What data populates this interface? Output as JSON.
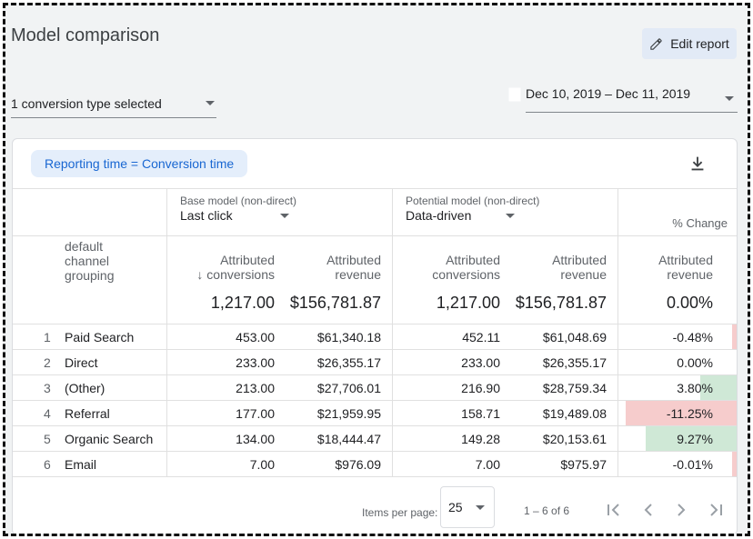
{
  "page": {
    "title": "Model comparison",
    "edit_label": "Edit report"
  },
  "filters": {
    "conversion_type": "1 conversion type selected",
    "date_range": "Dec 10, 2019 – Dec 11, 2019"
  },
  "report": {
    "chip": "Reporting time = Conversion time",
    "base_model_caption": "Base model (non-direct)",
    "base_model": "Last click",
    "potential_model_caption": "Potential model (non-direct)",
    "potential_model": "Data-driven",
    "change_caption": "% Change",
    "dimension_header": "default channel grouping",
    "dimension_lines": [
      "default",
      "channel",
      "grouping"
    ],
    "metric_conv": [
      "Attributed",
      "conversions"
    ],
    "metric_rev": [
      "Attributed",
      "revenue"
    ],
    "sort_arrow": "↓",
    "totals": {
      "base_conv": "1,217.00",
      "base_rev": "$156,781.87",
      "pot_conv": "1,217.00",
      "pot_rev": "$156,781.87",
      "change": "0.00%"
    },
    "rows": [
      {
        "num": "1",
        "name": "Paid Search",
        "base_conv": "453.00",
        "base_rev": "$61,340.18",
        "pot_conv": "452.11",
        "pot_rev": "$61,048.69",
        "change": "-0.48%",
        "change_value": -0.48
      },
      {
        "num": "2",
        "name": "Direct",
        "base_conv": "233.00",
        "base_rev": "$26,355.17",
        "pot_conv": "233.00",
        "pot_rev": "$26,355.17",
        "change": "0.00%",
        "change_value": 0
      },
      {
        "num": "3",
        "name": "(Other)",
        "base_conv": "213.00",
        "base_rev": "$27,706.01",
        "pot_conv": "216.90",
        "pot_rev": "$28,759.34",
        "change": "3.80%",
        "change_value": 3.8
      },
      {
        "num": "4",
        "name": "Referral",
        "base_conv": "177.00",
        "base_rev": "$21,959.95",
        "pot_conv": "158.71",
        "pot_rev": "$19,489.08",
        "change": "-11.25%",
        "change_value": -11.25
      },
      {
        "num": "5",
        "name": "Organic Search",
        "base_conv": "134.00",
        "base_rev": "$18,444.47",
        "pot_conv": "149.28",
        "pot_rev": "$20,153.61",
        "change": "9.27%",
        "change_value": 9.27
      },
      {
        "num": "6",
        "name": "Email",
        "base_conv": "7.00",
        "base_rev": "$976.09",
        "pot_conv": "7.00",
        "pot_rev": "$975.97",
        "change": "-0.01%",
        "change_value": -0.01
      }
    ]
  },
  "pagination": {
    "items_per_page_label": "Items per page:",
    "items_per_page": "25",
    "range": "1 – 6 of 6"
  },
  "colors": {
    "positive": "#cfe8d6",
    "negative": "#f6cccc",
    "accent": "#1967d2"
  }
}
